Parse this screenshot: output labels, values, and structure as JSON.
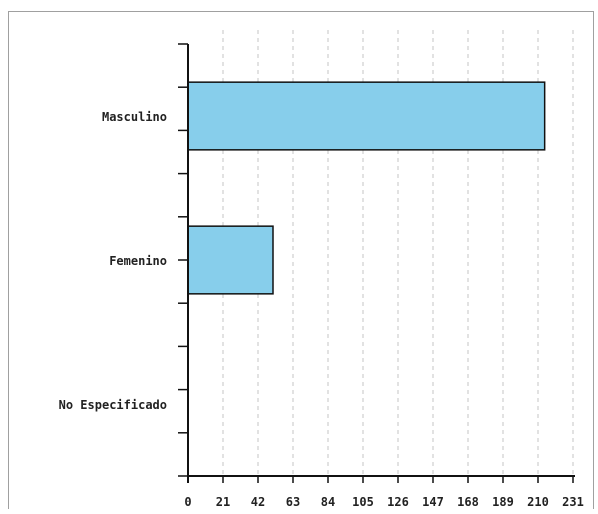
{
  "chart_data": {
    "type": "bar",
    "orientation": "horizontal",
    "title": "",
    "xlabel": "",
    "ylabel": "",
    "categories": [
      "Masculino",
      "Femenino",
      "No Especificado"
    ],
    "values": [
      214,
      51,
      0
    ],
    "xlim": [
      0,
      231
    ],
    "x_ticks": [
      "0",
      "21",
      "42",
      "63",
      "84",
      "105",
      "126",
      "147",
      "168",
      "189",
      "210",
      "231"
    ],
    "grid": "vertical dashed",
    "bar_color": "#87ceeb",
    "bar_edge_color": "#111111"
  }
}
